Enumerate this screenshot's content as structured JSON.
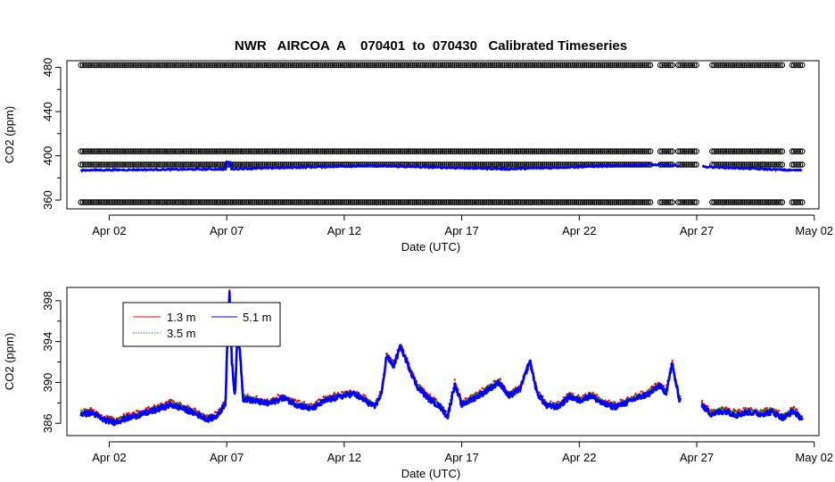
{
  "colors": {
    "s13": "#ff0000",
    "s35": "#00a000",
    "s51": "#0000ff",
    "cal": "#000000",
    "frame": "#000000"
  },
  "chart_data": [
    {
      "type": "scatter",
      "title": "NWR   AIRCOA  A    070401  to  070430   Calibrated Timeseries",
      "xlabel": "Date (UTC)",
      "ylabel": "CO2 (ppm)",
      "xlim": [
        -0.8,
        31.2
      ],
      "ylim": [
        352,
        486
      ],
      "xticks": [
        1,
        6,
        11,
        16,
        21,
        26,
        31
      ],
      "xticklabels": [
        "Apr 02",
        "Apr 07",
        "Apr 12",
        "Apr 17",
        "Apr 22",
        "Apr 27",
        "May 02"
      ],
      "yticks": [
        360,
        400,
        440,
        480
      ],
      "yticklabels": [
        "360",
        "400",
        "440",
        "480"
      ],
      "calibration_levels": [
        358,
        392,
        404,
        482
      ],
      "calibration_gaps": [
        [
          24.1,
          24.4
        ],
        [
          25.0,
          25.2
        ],
        [
          26.0,
          26.6
        ],
        [
          29.7,
          30.0
        ]
      ],
      "calibration_span": [
        -0.2,
        30.5
      ],
      "series": [
        {
          "name": "1.3 m",
          "color_key": "s13",
          "values": [
            {
              "x": -0.2,
              "y": 387
            },
            {
              "x": 6.0,
              "y": 388
            },
            {
              "x": 12.0,
              "y": 391
            },
            {
              "x": 18.0,
              "y": 388
            },
            {
              "x": 24.0,
              "y": 392
            },
            {
              "x": 30.0,
              "y": 387
            }
          ]
        },
        {
          "name": "3.5 m",
          "color_key": "s35",
          "values": [
            {
              "x": -0.2,
              "y": 387
            },
            {
              "x": 6.0,
              "y": 388
            },
            {
              "x": 12.0,
              "y": 391
            },
            {
              "x": 18.0,
              "y": 388
            },
            {
              "x": 24.0,
              "y": 392
            },
            {
              "x": 30.0,
              "y": 387
            }
          ]
        },
        {
          "name": "5.1 m",
          "color_key": "s51",
          "values": [
            {
              "x": -0.2,
              "y": 387
            },
            {
              "x": 6.0,
              "y": 388
            },
            {
              "x": 12.0,
              "y": 391
            },
            {
              "x": 18.0,
              "y": 388
            },
            {
              "x": 24.0,
              "y": 392
            },
            {
              "x": 30.0,
              "y": 387
            }
          ]
        }
      ],
      "grid": false,
      "legend": "none"
    },
    {
      "type": "line",
      "title": "",
      "xlabel": "Date (UTC)",
      "ylabel": "CO2 (ppm)",
      "xlim": [
        -0.8,
        31.2
      ],
      "ylim": [
        384.8,
        399.3
      ],
      "xticks": [
        1,
        6,
        11,
        16,
        21,
        26,
        31
      ],
      "xticklabels": [
        "Apr 02",
        "Apr 07",
        "Apr 12",
        "Apr 17",
        "Apr 22",
        "Apr 27",
        "May 02"
      ],
      "yticks": [
        386,
        390,
        394,
        398
      ],
      "yticklabels": [
        "386",
        "390",
        "394",
        "398"
      ],
      "gaps": [
        [
          25.3,
          26.2
        ]
      ],
      "key_points": [
        {
          "x": -0.2,
          "y": 386.9
        },
        {
          "x": 0.3,
          "y": 387.0
        },
        {
          "x": 0.7,
          "y": 386.4
        },
        {
          "x": 1.2,
          "y": 386.1
        },
        {
          "x": 1.8,
          "y": 386.5
        },
        {
          "x": 2.4,
          "y": 386.9
        },
        {
          "x": 3.0,
          "y": 387.3
        },
        {
          "x": 3.6,
          "y": 387.8
        },
        {
          "x": 4.2,
          "y": 387.4
        },
        {
          "x": 4.8,
          "y": 386.8
        },
        {
          "x": 5.2,
          "y": 386.4
        },
        {
          "x": 5.6,
          "y": 386.7
        },
        {
          "x": 5.95,
          "y": 388.0
        },
        {
          "x": 6.05,
          "y": 396.0
        },
        {
          "x": 6.12,
          "y": 398.6
        },
        {
          "x": 6.22,
          "y": 392.0
        },
        {
          "x": 6.35,
          "y": 388.6
        },
        {
          "x": 6.45,
          "y": 394.4
        },
        {
          "x": 6.55,
          "y": 393.5
        },
        {
          "x": 6.7,
          "y": 388.4
        },
        {
          "x": 7.2,
          "y": 388.2
        },
        {
          "x": 7.8,
          "y": 387.9
        },
        {
          "x": 8.4,
          "y": 388.5
        },
        {
          "x": 9.0,
          "y": 387.8
        },
        {
          "x": 9.6,
          "y": 387.4
        },
        {
          "x": 10.2,
          "y": 388.2
        },
        {
          "x": 10.8,
          "y": 388.6
        },
        {
          "x": 11.4,
          "y": 388.9
        },
        {
          "x": 11.9,
          "y": 388.2
        },
        {
          "x": 12.3,
          "y": 387.6
        },
        {
          "x": 12.6,
          "y": 389.0
        },
        {
          "x": 12.8,
          "y": 392.6
        },
        {
          "x": 13.1,
          "y": 391.6
        },
        {
          "x": 13.4,
          "y": 393.5
        },
        {
          "x": 13.7,
          "y": 391.8
        },
        {
          "x": 14.1,
          "y": 389.6
        },
        {
          "x": 14.6,
          "y": 388.4
        },
        {
          "x": 15.1,
          "y": 387.6
        },
        {
          "x": 15.4,
          "y": 386.6
        },
        {
          "x": 15.7,
          "y": 389.8
        },
        {
          "x": 16.0,
          "y": 387.8
        },
        {
          "x": 16.5,
          "y": 388.4
        },
        {
          "x": 17.0,
          "y": 389.1
        },
        {
          "x": 17.6,
          "y": 390.0
        },
        {
          "x": 18.0,
          "y": 388.6
        },
        {
          "x": 18.5,
          "y": 389.4
        },
        {
          "x": 18.9,
          "y": 392.1
        },
        {
          "x": 19.2,
          "y": 389.0
        },
        {
          "x": 19.6,
          "y": 387.7
        },
        {
          "x": 20.1,
          "y": 387.6
        },
        {
          "x": 20.6,
          "y": 388.6
        },
        {
          "x": 21.0,
          "y": 388.2
        },
        {
          "x": 21.5,
          "y": 388.7
        },
        {
          "x": 22.0,
          "y": 387.9
        },
        {
          "x": 22.5,
          "y": 387.6
        },
        {
          "x": 23.0,
          "y": 388.0
        },
        {
          "x": 23.5,
          "y": 388.5
        },
        {
          "x": 24.0,
          "y": 388.9
        },
        {
          "x": 24.4,
          "y": 389.7
        },
        {
          "x": 24.7,
          "y": 389.0
        },
        {
          "x": 24.95,
          "y": 391.8
        },
        {
          "x": 25.25,
          "y": 388.4
        },
        {
          "x": 26.2,
          "y": 387.8
        },
        {
          "x": 26.6,
          "y": 386.9
        },
        {
          "x": 27.2,
          "y": 387.2
        },
        {
          "x": 27.7,
          "y": 386.8
        },
        {
          "x": 28.2,
          "y": 387.1
        },
        {
          "x": 28.7,
          "y": 386.9
        },
        {
          "x": 29.2,
          "y": 387.1
        },
        {
          "x": 29.7,
          "y": 386.5
        },
        {
          "x": 30.1,
          "y": 387.2
        },
        {
          "x": 30.5,
          "y": 386.4
        }
      ],
      "series": [
        {
          "name": "1.3 m",
          "color_key": "s13"
        },
        {
          "name": "3.5 m",
          "color_key": "s35"
        },
        {
          "name": "5.1 m",
          "color_key": "s51"
        }
      ],
      "grid": false,
      "legend": "top-left"
    }
  ]
}
